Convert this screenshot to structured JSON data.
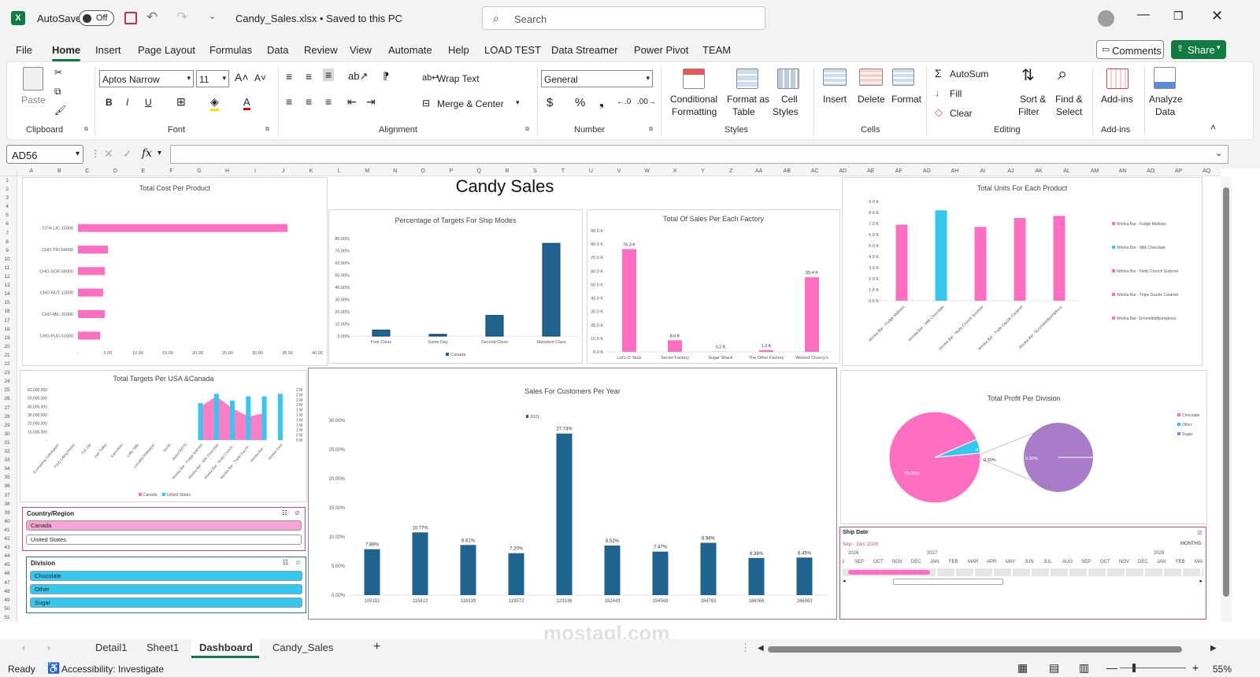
{
  "title_bar": {
    "autosave_label": "AutoSave",
    "autosave_state": "Off",
    "file_name": "Candy_Sales.xlsx • Saved to this PC",
    "search_placeholder": "Search"
  },
  "menu": [
    "File",
    "Home",
    "Insert",
    "Page Layout",
    "Formulas",
    "Data",
    "Review",
    "View",
    "Automate",
    "Help",
    "LOAD TEST",
    "Data Streamer",
    "Power Pivot",
    "TEAM"
  ],
  "menu_active": "Home",
  "comments_label": "Comments",
  "share_label": "Share",
  "ribbon": {
    "paste": "Paste",
    "clipboard": "Clipboard",
    "font_name": "Aptos Narrow",
    "font_size": "11",
    "font_group": "Font",
    "wrap_text": "Wrap Text",
    "merge_center": "Merge & Center",
    "alignment_group": "Alignment",
    "number_format": "General",
    "number_group": "Number",
    "conditional_formatting": [
      "Conditional",
      "Formatting"
    ],
    "format_as_table": [
      "Format as",
      "Table"
    ],
    "cell_styles": [
      "Cell",
      "Styles"
    ],
    "styles_group": "Styles",
    "insert": "Insert",
    "delete": "Delete",
    "format": "Format",
    "cells_group": "Cells",
    "autosum": "AutoSum",
    "fill": "Fill",
    "clear": "Clear",
    "sort_filter": [
      "Sort &",
      "Filter"
    ],
    "find_select": [
      "Find &",
      "Select"
    ],
    "editing_group": "Editing",
    "addins": "Add-ins",
    "addins_group": "Add-ins",
    "analyze_data": [
      "Analyze",
      "Data"
    ]
  },
  "formula_bar": {
    "name_box": "AD56",
    "fx": "fx"
  },
  "columns": [
    "A",
    "B",
    "C",
    "D",
    "E",
    "F",
    "G",
    "H",
    "I",
    "J",
    "K",
    "L",
    "M",
    "N",
    "O",
    "P",
    "Q",
    "R",
    "S",
    "T",
    "U",
    "V",
    "W",
    "X",
    "Y",
    "Z",
    "AA",
    "AB",
    "AC",
    "AD",
    "AE",
    "AF",
    "AG",
    "AH",
    "AI",
    "AJ",
    "AK",
    "AL",
    "AM",
    "AN",
    "AO",
    "AP",
    "AQ"
  ],
  "rows": [
    "1",
    "2",
    "3",
    "4",
    "5",
    "6",
    "7",
    "8",
    "9",
    "10",
    "11",
    "12",
    "13",
    "14",
    "15",
    "16",
    "17",
    "18",
    "19",
    "20",
    "21",
    "22",
    "23",
    "24",
    "25",
    "26",
    "27",
    "28",
    "29",
    "30",
    "31",
    "32",
    "33",
    "34",
    "35",
    "36",
    "37",
    "38",
    "39",
    "40",
    "41",
    "42",
    "43",
    "44",
    "45",
    "46",
    "47",
    "48",
    "49",
    "50",
    "51"
  ],
  "dashboard_title": "Candy Sales",
  "sheet_tabs": [
    "Detail1",
    "Sheet1",
    "Dashboard",
    "Candy_Sales"
  ],
  "active_tab": "Dashboard",
  "status": {
    "ready": "Ready",
    "accessibility": "Accessibility: Investigate",
    "zoom": "55%"
  },
  "watermark": "mostaql.com",
  "slicers": {
    "country": {
      "title": "Country/Region",
      "items": [
        "Canada",
        "United States"
      ]
    },
    "division": {
      "title": "Division",
      "items": [
        "Chocolate",
        "Other",
        "Sugar"
      ]
    }
  },
  "timeline": {
    "title": "Ship Date",
    "range": "Sep - Dec 2026",
    "level": "MONTHS",
    "years": [
      "2026",
      "2027",
      "2028"
    ],
    "months": [
      "J",
      "SEP",
      "OCT",
      "NOV",
      "DEC",
      "JAN",
      "FEB",
      "MAR",
      "APR",
      "MAY",
      "JUN",
      "JUL",
      "AUG",
      "SEP",
      "OCT",
      "NOV",
      "DEC",
      "JAN",
      "FEB",
      "MAI"
    ]
  },
  "colors": {
    "pink": "#ff6ec0",
    "blue": "#1f6391",
    "cyan": "#32c8f0",
    "purple": "#a87cc8",
    "excel_green": "#107c41"
  },
  "chart_data": [
    {
      "id": "cost",
      "type": "bar",
      "orientation": "horizontal",
      "title": "Total Cost Per Product",
      "categories": [
        "OTH-LIC-15000",
        "CHO-TRI-54000",
        "CHO-SCR-58000",
        "CHO-NUT-13000",
        "CHO-MIL-31000",
        "CHO-FUD-51000"
      ],
      "values": [
        35.0,
        5.0,
        4.5,
        4.2,
        4.5,
        3.7
      ],
      "x_ticks": [
        "-",
        "5.00",
        "10.00",
        "15.00",
        "20.00",
        "25.00",
        "30.00",
        "35.00",
        "40.00"
      ],
      "xlim": [
        0,
        40
      ]
    },
    {
      "id": "shipmodes",
      "type": "bar",
      "title": "Percentage of Targets For Ship Modes",
      "categories": [
        "First Class",
        "Same Day",
        "Second Class",
        "Standard Class"
      ],
      "values": [
        5.0,
        1.5,
        17.0,
        76.0
      ],
      "y_ticks": [
        "0.00%",
        "10.00%",
        "20.00%",
        "30.00%",
        "40.00%",
        "50.00%",
        "60.00%",
        "70.00%",
        "80.00%"
      ],
      "ylim": [
        0,
        80
      ],
      "legend": [
        "Canada"
      ]
    },
    {
      "id": "factory",
      "type": "bar",
      "title": "Total Of Sales Per Each Factory",
      "categories": [
        "Lot's O' Nuts",
        "Secret Factory",
        "Sugar Shack",
        "The Other Factory",
        "Wicked Choccy's"
      ],
      "values": [
        76.3,
        8.6,
        0.2,
        1.3,
        55.4
      ],
      "labels": [
        "76.3 K",
        "8.6 K",
        "0.2 K",
        "1.3 K",
        "55.4 K"
      ],
      "y_ticks": [
        "0.0 K",
        "10.0 K",
        "20.0 K",
        "30.0 K",
        "40.0 K",
        "50.0 K",
        "60.0 K",
        "70.0 K",
        "80.0 K",
        "90.0 K"
      ],
      "ylim": [
        0,
        90
      ]
    },
    {
      "id": "units",
      "type": "bar",
      "title": "Total Units For Each Product",
      "categories": [
        "Wonka Bar - Fudge Mallows",
        "Wonka Bar - Milk Chocolate",
        "Wonka Bar - Nutty Crunch Surprise",
        "Wonka Bar - Triple Dazzle Caramel",
        "Wonka Bar -Scrumdiddlyumptious"
      ],
      "values": [
        6.9,
        8.2,
        6.7,
        7.5,
        7.7
      ],
      "y_ticks": [
        "0.0 K",
        "1.0 K",
        "2.0 K",
        "3.0 K",
        "4.0 K",
        "5.0 K",
        "6.0 K",
        "7.0 K",
        "8.0 K",
        "9.0 K"
      ],
      "ylim": [
        0,
        9
      ],
      "legend": [
        "Wonka Bar - Fudge Mallows",
        "Wonka Bar - Milk Chocolate",
        "Wonka Bar - Nutty Crunch Surprise",
        "Wonka Bar - Triple Dazzle Caramel",
        "Wonka Bar -Scrumdiddlyumptious"
      ]
    },
    {
      "id": "targets",
      "type": "bar",
      "title": "Total Targets Per USA &Canada",
      "categories": [
        "Everlasting Gobstopper",
        "Fizzy Lifting Drinks",
        "Fun Dip",
        "Hair Toffee",
        "Kazookles",
        "Laffy Taffy",
        "Lickable Wallpaper",
        "Nerds",
        "SweeTARTS",
        "Wonka Bar - Fudge Mallows",
        "Wonka Bar - Milk Chocolate",
        "Wonka Bar - Nutty Crunch...",
        "Wonka Bar - Triple Dazzle...",
        "Wonka Bar -...",
        "Wonka Gum"
      ],
      "series": [
        {
          "name": "Canada",
          "values": [
            0,
            0,
            0,
            0,
            0,
            0,
            0,
            0,
            0,
            40,
            52,
            38,
            28,
            32,
            0
          ]
        },
        {
          "name": "United States",
          "values": [
            0,
            0,
            0,
            0,
            0,
            0,
            0,
            0,
            0,
            44,
            55,
            47,
            52,
            52,
            55
          ]
        }
      ],
      "y_ticks": [
        "-",
        "10,000,000",
        "20,000,000",
        "30,000,000",
        "40,000,000",
        "50,000,000",
        "60,000,000"
      ],
      "y2_ticks": [
        "0 M",
        "0 M",
        "1 M",
        "1 M",
        "1 M",
        "1 M",
        "1 M",
        "2 M",
        "2 M",
        "2 M",
        "2 M"
      ],
      "ylim": [
        0,
        60
      ],
      "legend": [
        "Canada",
        "United States"
      ]
    },
    {
      "id": "customers",
      "type": "bar",
      "title": "Sales For Customers Per Year",
      "categories": [
        "105151",
        "115812",
        "118339",
        "119572",
        "123336",
        "152443",
        "154569",
        "164763",
        "166066",
        "166863"
      ],
      "values": [
        7.88,
        10.77,
        8.61,
        7.2,
        27.74,
        8.52,
        7.47,
        8.98,
        6.38,
        6.45
      ],
      "labels": [
        "7.88%",
        "10.77%",
        "8.61%",
        "7.20%",
        "27.74%",
        "8.52%",
        "7.47%",
        "8.98%",
        "6.38%",
        "6.45%"
      ],
      "y_ticks": [
        "0.00%",
        "5.00%",
        "10.00%",
        "15.00%",
        "20.00%",
        "25.00%",
        "30.00%"
      ],
      "ylim": [
        0,
        30
      ],
      "legend": [
        "2021"
      ]
    },
    {
      "id": "profit",
      "type": "pie",
      "title": "Total Profit Per Division",
      "categories": [
        "Chocolate",
        "Other",
        "Sugar"
      ],
      "values": [
        95.06,
        4.64,
        0.3
      ],
      "labels": [
        "95.06%",
        "4.64%",
        "0.30%"
      ],
      "legend": [
        "Chocolate",
        "Other",
        "Sugar"
      ]
    }
  ]
}
